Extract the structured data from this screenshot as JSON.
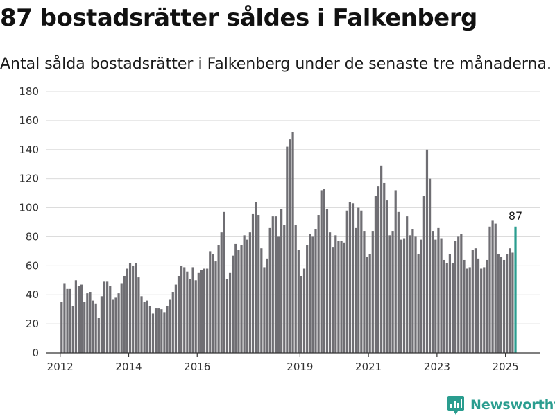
{
  "page": {
    "title": "87 bostadsrätter såldes i Falkenberg",
    "subtitle": "Antal sålda bostadsrätter i Falkenberg under de senaste tre månaderna."
  },
  "brand": {
    "name": "Newsworthy",
    "icon": "newsworthy-logo-icon",
    "color": "#2a9d8f"
  },
  "chart_data": {
    "type": "bar",
    "title": "87 bostadsrätter såldes i Falkenberg",
    "subtitle": "Antal sålda bostadsrätter i Falkenberg under de senaste tre månaderna.",
    "xlabel": "",
    "ylabel": "",
    "ylim": [
      0,
      180
    ],
    "yticks": [
      0,
      20,
      40,
      60,
      80,
      100,
      120,
      140,
      160,
      180
    ],
    "xlim": [
      2011.6,
      2026.0
    ],
    "xticks": [
      2012,
      2014,
      2016,
      2019,
      2021,
      2023,
      2025
    ],
    "grid": true,
    "legend": "none",
    "bar_color": "#6f6e73",
    "highlight_color": "#2a9d8f",
    "highlight_label": "87",
    "start": "2012-01",
    "interval": "month",
    "values": [
      35,
      48,
      44,
      44,
      32,
      50,
      46,
      47,
      35,
      41,
      42,
      36,
      34,
      24,
      39,
      49,
      49,
      46,
      37,
      38,
      41,
      48,
      53,
      58,
      62,
      60,
      62,
      52,
      39,
      35,
      36,
      32,
      27,
      31,
      31,
      30,
      28,
      32,
      37,
      42,
      47,
      53,
      60,
      59,
      56,
      51,
      59,
      50,
      55,
      57,
      58,
      58,
      70,
      68,
      63,
      74,
      83,
      97,
      51,
      55,
      67,
      75,
      71,
      74,
      81,
      78,
      83,
      96,
      104,
      95,
      72,
      59,
      65,
      86,
      94,
      94,
      80,
      99,
      88,
      142,
      147,
      152,
      88,
      71,
      53,
      58,
      74,
      82,
      80,
      85,
      95,
      112,
      113,
      99,
      83,
      73,
      81,
      77,
      77,
      76,
      98,
      104,
      103,
      86,
      100,
      98,
      84,
      66,
      68,
      84,
      108,
      115,
      129,
      117,
      105,
      81,
      84,
      112,
      97,
      78,
      79,
      94,
      81,
      85,
      80,
      68,
      78,
      108,
      140,
      120,
      84,
      78,
      86,
      79,
      64,
      62,
      68,
      62,
      77,
      80,
      82,
      64,
      58,
      59,
      71,
      72,
      65,
      58,
      59,
      64,
      87,
      91,
      89,
      68,
      66,
      64,
      68,
      72,
      69,
      87
    ]
  }
}
